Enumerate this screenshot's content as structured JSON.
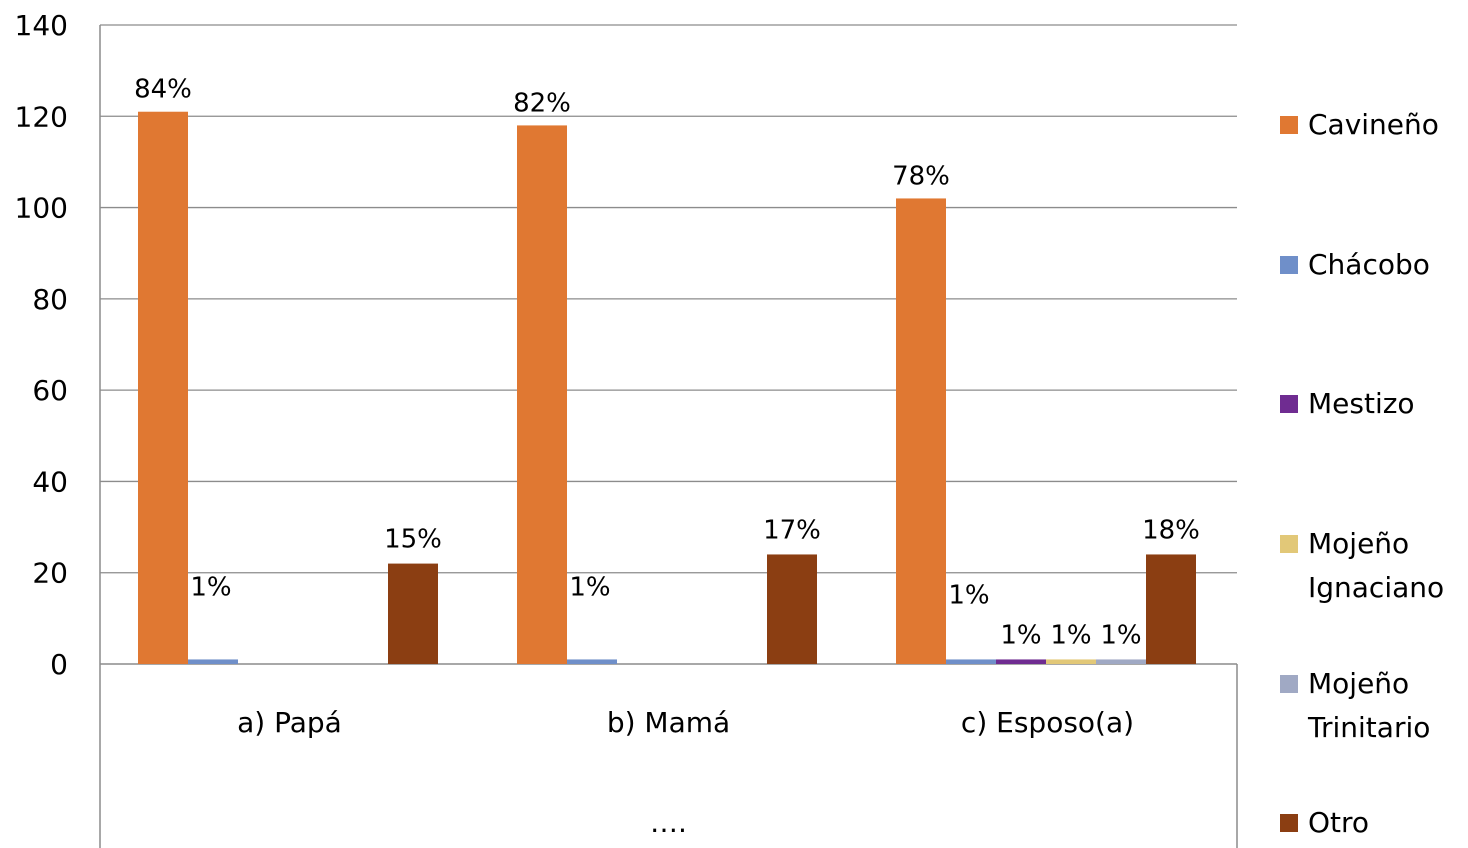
{
  "chart_data": {
    "type": "bar",
    "title": "",
    "xlabel": "",
    "ylabel": "",
    "ylim": [
      0,
      140
    ],
    "yticks": [
      0,
      20,
      40,
      60,
      80,
      100,
      120,
      140
    ],
    "grid": true,
    "legend_position": "right",
    "categories": [
      "a) Papá",
      "b) Mamá",
      "c) Esposo(a)"
    ],
    "category_group_label": "….",
    "series": [
      {
        "name": "Cavineño",
        "legend_lines": [
          "Cavineño"
        ],
        "color": "#E07832",
        "values": [
          121,
          118,
          102
        ],
        "labels": [
          "84%",
          "82%",
          "78%"
        ]
      },
      {
        "name": "Chácobo",
        "legend_lines": [
          "Chácobo"
        ],
        "color": "#6F8FC9",
        "values": [
          1,
          1,
          1
        ],
        "labels": [
          "1%",
          "1%",
          "1%"
        ]
      },
      {
        "name": "Mestizo",
        "legend_lines": [
          "Mestizo"
        ],
        "color": "#6F2C91",
        "values": [
          0,
          0,
          1
        ],
        "labels": [
          "",
          "",
          "1%"
        ]
      },
      {
        "name": "Mojeño Ignaciano",
        "legend_lines": [
          "Mojeño",
          "Ignaciano"
        ],
        "color": "#E2C878",
        "values": [
          0,
          0,
          1
        ],
        "labels": [
          "",
          "",
          "1%"
        ]
      },
      {
        "name": "Mojeño Trinitario",
        "legend_lines": [
          "Mojeño",
          "Trinitario"
        ],
        "color": "#A0A9C4",
        "values": [
          0,
          0,
          1
        ],
        "labels": [
          "",
          "",
          "1%"
        ]
      },
      {
        "name": "Otro",
        "legend_lines": [
          "Otro"
        ],
        "color": "#8B3E12",
        "values": [
          22,
          24,
          24
        ],
        "labels": [
          "15%",
          "17%",
          "18%"
        ]
      }
    ]
  }
}
